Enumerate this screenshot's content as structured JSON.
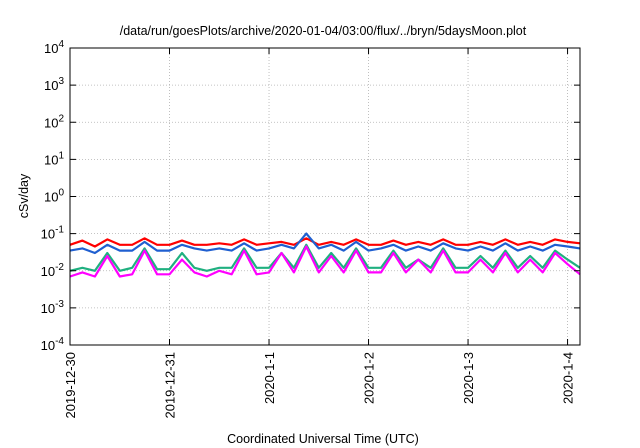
{
  "chart_data": {
    "type": "line",
    "title": "/data/run/goesPlots/archive/2020-01-04/03:00/flux/../bryn/5daysMoon.plot",
    "xlabel": "Coordinated Universal Time (UTC)",
    "ylabel": "cSv/day",
    "y_scale": "log",
    "ylim": [
      0.0001,
      10000
    ],
    "y_ticks": [
      {
        "base": "10",
        "exp": "-4",
        "value": 0.0001
      },
      {
        "base": "10",
        "exp": "-3",
        "value": 0.001
      },
      {
        "base": "10",
        "exp": "-2",
        "value": 0.01
      },
      {
        "base": "10",
        "exp": "-1",
        "value": 0.1
      },
      {
        "base": "10",
        "exp": "0",
        "value": 1
      },
      {
        "base": "10",
        "exp": "1",
        "value": 10
      },
      {
        "base": "10",
        "exp": "2",
        "value": 100
      },
      {
        "base": "10",
        "exp": "3",
        "value": 1000
      },
      {
        "base": "10",
        "exp": "4",
        "value": 10000
      }
    ],
    "xlim": [
      "2019-12-30",
      "2020-01-04T03:00"
    ],
    "x_ticks": [
      "2019-12-30",
      "2019-12-31",
      "2020-1-1",
      "2020-1-2",
      "2020-1-3",
      "2020-1-4"
    ],
    "grid": true,
    "x": [
      "2019-12-30T00:00",
      "2019-12-30T03:00",
      "2019-12-30T06:00",
      "2019-12-30T09:00",
      "2019-12-30T12:00",
      "2019-12-30T15:00",
      "2019-12-30T18:00",
      "2019-12-30T21:00",
      "2019-12-31T00:00",
      "2019-12-31T03:00",
      "2019-12-31T06:00",
      "2019-12-31T09:00",
      "2019-12-31T12:00",
      "2019-12-31T15:00",
      "2019-12-31T18:00",
      "2019-12-31T21:00",
      "2020-01-01T00:00",
      "2020-01-01T03:00",
      "2020-01-01T06:00",
      "2020-01-01T09:00",
      "2020-01-01T12:00",
      "2020-01-01T15:00",
      "2020-01-01T18:00",
      "2020-01-01T21:00",
      "2020-01-02T00:00",
      "2020-01-02T03:00",
      "2020-01-02T06:00",
      "2020-01-02T09:00",
      "2020-01-02T12:00",
      "2020-01-02T15:00",
      "2020-01-02T18:00",
      "2020-01-02T21:00",
      "2020-01-03T00:00",
      "2020-01-03T03:00",
      "2020-01-03T06:00",
      "2020-01-03T09:00",
      "2020-01-03T12:00",
      "2020-01-03T15:00",
      "2020-01-03T18:00",
      "2020-01-03T21:00",
      "2020-01-04T00:00",
      "2020-01-04T03:00"
    ],
    "series": [
      {
        "color": "#ff0000",
        "values": [
          0.05,
          0.065,
          0.045,
          0.07,
          0.05,
          0.05,
          0.075,
          0.05,
          0.05,
          0.065,
          0.05,
          0.05,
          0.055,
          0.05,
          0.07,
          0.05,
          0.055,
          0.06,
          0.05,
          0.075,
          0.05,
          0.06,
          0.05,
          0.07,
          0.05,
          0.05,
          0.065,
          0.05,
          0.06,
          0.05,
          0.07,
          0.05,
          0.05,
          0.06,
          0.05,
          0.07,
          0.05,
          0.06,
          0.05,
          0.07,
          0.06,
          0.055
        ]
      },
      {
        "color": "#1f5fd0",
        "values": [
          0.035,
          0.04,
          0.03,
          0.05,
          0.035,
          0.035,
          0.06,
          0.035,
          0.035,
          0.05,
          0.04,
          0.035,
          0.04,
          0.035,
          0.055,
          0.035,
          0.04,
          0.05,
          0.04,
          0.1,
          0.04,
          0.05,
          0.035,
          0.06,
          0.035,
          0.04,
          0.05,
          0.035,
          0.045,
          0.035,
          0.055,
          0.04,
          0.035,
          0.045,
          0.035,
          0.055,
          0.035,
          0.045,
          0.035,
          0.05,
          0.045,
          0.04
        ]
      },
      {
        "color": "#20b080",
        "values": [
          0.01,
          0.012,
          0.01,
          0.03,
          0.01,
          0.012,
          0.04,
          0.011,
          0.011,
          0.03,
          0.012,
          0.01,
          0.012,
          0.012,
          0.04,
          0.012,
          0.012,
          0.03,
          0.012,
          0.05,
          0.012,
          0.03,
          0.012,
          0.04,
          0.012,
          0.012,
          0.035,
          0.012,
          0.02,
          0.012,
          0.04,
          0.012,
          0.012,
          0.025,
          0.012,
          0.035,
          0.012,
          0.025,
          0.012,
          0.035,
          0.02,
          0.012
        ]
      },
      {
        "color": "#ff00ff",
        "values": [
          0.007,
          0.009,
          0.007,
          0.025,
          0.007,
          0.008,
          0.035,
          0.008,
          0.008,
          0.02,
          0.009,
          0.007,
          0.01,
          0.008,
          0.035,
          0.008,
          0.009,
          0.03,
          0.009,
          0.045,
          0.009,
          0.025,
          0.009,
          0.035,
          0.009,
          0.009,
          0.03,
          0.009,
          0.02,
          0.009,
          0.035,
          0.009,
          0.009,
          0.02,
          0.009,
          0.03,
          0.009,
          0.02,
          0.009,
          0.03,
          0.015,
          0.008
        ]
      }
    ]
  }
}
